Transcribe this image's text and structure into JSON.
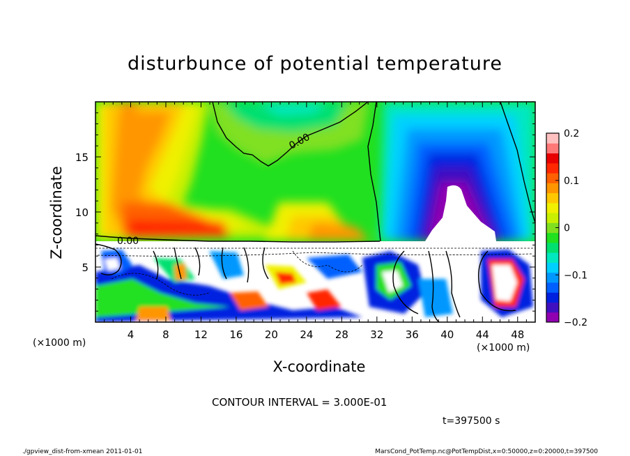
{
  "chart_data": {
    "type": "heatmap",
    "title": "disturbunce of potential temperature",
    "xlabel": "X-coordinate",
    "ylabel": "Z-coordinate",
    "x_unit": "(×1000 m)",
    "xlim": [
      0,
      50
    ],
    "ylim": [
      0,
      20
    ],
    "x_ticks": [
      4,
      8,
      12,
      16,
      20,
      24,
      28,
      32,
      36,
      40,
      44,
      48
    ],
    "y_ticks": [
      5,
      10,
      15
    ],
    "zero_contour_label": "0.00",
    "colorbar": {
      "range": [
        -0.2,
        0.2
      ],
      "tick_values": [
        0.2,
        0.1,
        0,
        -0.1,
        -0.2
      ],
      "tick_labels": [
        "0.2",
        "0.1",
        "0",
        "−0.1",
        "−0.2"
      ],
      "colors": [
        "#9000b0",
        "#4010c0",
        "#0020e0",
        "#0060ff",
        "#0098ff",
        "#00d0ff",
        "#00e8c0",
        "#00e070",
        "#20e020",
        "#80e020",
        "#c8f000",
        "#f0f000",
        "#ffc800",
        "#ff9600",
        "#ff6000",
        "#ff2800",
        "#e80000",
        "#ff7878",
        "#ffc0c0"
      ]
    },
    "contour_interval": "CONTOUR INTERVAL = 3.000E-01",
    "time": "t=397500 s"
  },
  "footer": {
    "left": "./gpview_dist-from-xmean  2011-01-01",
    "right": "MarsCond_PotTemp.nc@PotTempDist,x=0:50000,z=0:20000,t=397500"
  }
}
